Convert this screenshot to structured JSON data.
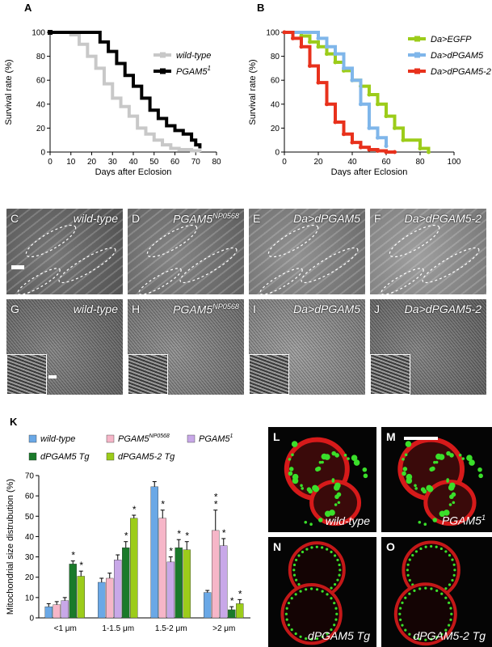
{
  "panel_letters": {
    "A": "A",
    "B": "B",
    "K": "K"
  },
  "chart_data": [
    {
      "type": "line",
      "panel": "A",
      "xlabel": "Days after Eclosion",
      "ylabel": "Survival rate (%)",
      "xlim": [
        0,
        80
      ],
      "ylim": [
        0,
        100
      ],
      "xticks": [
        "0",
        "10",
        "20",
        "30",
        "40",
        "50",
        "60",
        "70",
        "80"
      ],
      "yticks": [
        "0",
        "20",
        "40",
        "60",
        "80",
        "100"
      ],
      "legend_position": "top-right",
      "series": [
        {
          "name": "wild-type",
          "name_sup": "",
          "color": "#c8c8c8",
          "x": [
            0,
            10,
            14,
            18,
            22,
            26,
            30,
            34,
            38,
            42,
            46,
            50,
            54,
            58,
            62,
            68,
            72
          ],
          "y": [
            100,
            98,
            90,
            80,
            70,
            57,
            45,
            38,
            30,
            20,
            15,
            10,
            6,
            3,
            2,
            1,
            0
          ]
        },
        {
          "name": "PGAM5",
          "name_sup": "1",
          "color": "#000000",
          "x": [
            0,
            20,
            24,
            28,
            32,
            36,
            40,
            44,
            48,
            52,
            56,
            60,
            64,
            68,
            70,
            72
          ],
          "y": [
            100,
            100,
            92,
            84,
            74,
            64,
            55,
            45,
            35,
            28,
            22,
            18,
            15,
            10,
            6,
            3
          ]
        }
      ]
    },
    {
      "type": "line",
      "panel": "B",
      "xlabel": "Days after Eclosion",
      "ylabel": "Survival rate (%)",
      "xlim": [
        0,
        100
      ],
      "ylim": [
        0,
        100
      ],
      "xticks": [
        "0",
        "20",
        "40",
        "60",
        "80",
        "100"
      ],
      "yticks": [
        "0",
        "20",
        "40",
        "60",
        "80",
        "100"
      ],
      "legend_position": "top-right",
      "series": [
        {
          "name": "Da>EGFP",
          "color": "#9ccc1a",
          "x": [
            0,
            10,
            15,
            20,
            25,
            30,
            35,
            40,
            45,
            50,
            55,
            60,
            65,
            70,
            80,
            85
          ],
          "y": [
            100,
            97,
            92,
            88,
            82,
            75,
            68,
            60,
            55,
            48,
            40,
            30,
            20,
            10,
            3,
            0
          ]
        },
        {
          "name": "Da>dPGAM5",
          "color": "#7fb6ea",
          "x": [
            0,
            20,
            25,
            30,
            35,
            40,
            45,
            50,
            55,
            60
          ],
          "y": [
            100,
            95,
            88,
            82,
            70,
            60,
            40,
            20,
            12,
            5
          ]
        },
        {
          "name": "Da>dPGAM5-2",
          "color": "#e8311c",
          "x": [
            0,
            5,
            10,
            15,
            20,
            25,
            30,
            35,
            40,
            45,
            50,
            55,
            60,
            65
          ],
          "y": [
            100,
            95,
            88,
            72,
            58,
            40,
            25,
            15,
            8,
            4,
            2,
            1,
            0,
            0
          ]
        }
      ]
    },
    {
      "type": "bar",
      "panel": "K",
      "ylabel": "Mitochondrial size distrubution (%)",
      "ylim": [
        0,
        70
      ],
      "yticks": [
        "0",
        "10",
        "20",
        "30",
        "40",
        "50",
        "60",
        "70"
      ],
      "categories": [
        "<1 μm",
        "1-1.5 μm",
        "1.5-2 μm",
        ">2 μm"
      ],
      "legend_position": "top",
      "series": [
        {
          "name": "wild-type",
          "name_sup": "",
          "color": "#6aa8e6",
          "values": [
            5.5,
            17.5,
            64.5,
            12.5
          ],
          "err": [
            1.5,
            2,
            2.5,
            1
          ],
          "stars": [
            "",
            "",
            "",
            ""
          ]
        },
        {
          "name": "PGAM5",
          "name_sup": "NP0568",
          "color": "#f6b6c8",
          "values": [
            6.5,
            19.5,
            49,
            43
          ],
          "err": [
            1.5,
            2.5,
            4,
            10
          ],
          "stars": [
            "",
            "",
            "*",
            "*\n*"
          ]
        },
        {
          "name": "PGAM5",
          "name_sup": "1",
          "color": "#c8a8e8",
          "values": [
            8.5,
            28.5,
            27.5,
            35.5
          ],
          "err": [
            1.5,
            2.5,
            2.5,
            3.5
          ],
          "stars": [
            "",
            "",
            "*",
            "*"
          ]
        },
        {
          "name": "dPGAM5 Tg",
          "name_sup": "",
          "color": "#1a7a2a",
          "values": [
            26.5,
            34.5,
            34.5,
            4
          ],
          "err": [
            1.5,
            3,
            4,
            1.5
          ],
          "stars": [
            "*",
            "*",
            "*",
            "*"
          ]
        },
        {
          "name": "dPGAM5-2 Tg",
          "name_sup": "",
          "color": "#9ccc1a",
          "values": [
            20.5,
            49,
            33.5,
            7
          ],
          "err": [
            2.5,
            1.5,
            4,
            2
          ],
          "stars": [
            "*",
            "*",
            "*",
            "*"
          ]
        }
      ]
    }
  ],
  "em_panels": [
    {
      "letter": "C",
      "label": "wild-type",
      "sup": ""
    },
    {
      "letter": "D",
      "label": "PGAM5",
      "sup": "NP0568"
    },
    {
      "letter": "E",
      "label": "Da>dPGAM5",
      "sup": ""
    },
    {
      "letter": "F",
      "label": "Da>dPGAM5-2",
      "sup": ""
    },
    {
      "letter": "G",
      "label": "wild-type",
      "sup": ""
    },
    {
      "letter": "H",
      "label": "PGAM5",
      "sup": "NP0568"
    },
    {
      "letter": "I",
      "label": "Da>dPGAM5",
      "sup": ""
    },
    {
      "letter": "J",
      "label": "Da>dPGAM5-2",
      "sup": ""
    }
  ],
  "fl_panels": [
    {
      "letter": "L",
      "label": "wild-type",
      "sup": ""
    },
    {
      "letter": "M",
      "label": "PGAM5",
      "sup": "1"
    },
    {
      "letter": "N",
      "label": "dPGAM5 Tg",
      "sup": ""
    },
    {
      "letter": "O",
      "label": "dPGAM5-2 Tg",
      "sup": ""
    }
  ]
}
